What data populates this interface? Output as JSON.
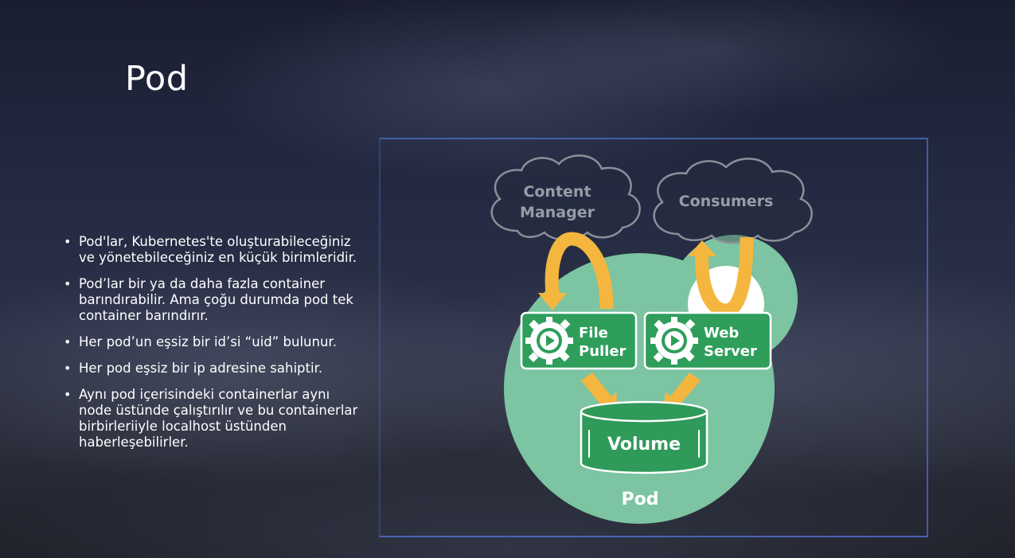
{
  "slide": {
    "title": "Pod",
    "bullets": [
      "Pod'lar, Kubernetes'te oluşturabileceğiniz ve yönetebileceğiniz en küçük birimleridir.",
      "Pod’lar bir ya da daha fazla container barındırabilir. Ama çoğu durumda pod tek container barındırır.",
      "Her pod’un eşsiz bir id’si “uid” bulunur.",
      "Her pod eşsiz bir ip adresine sahiptir.",
      "Aynı pod içerisindeki containerlar aynı node üstünde çalıştırılır ve bu containerlar birbirleriiyle localhost üstünden haberleşebilirler."
    ],
    "bullet_symbol": "•"
  },
  "diagram": {
    "cloud_left": {
      "line1": "Content",
      "line2": "Manager"
    },
    "cloud_right": {
      "label": "Consumers"
    },
    "container_left": {
      "line1": "File",
      "line2": "Puller",
      "icon": "gear-play-icon"
    },
    "container_right": {
      "line1": "Web",
      "line2": "Server",
      "icon": "gear-play-icon"
    },
    "volume": {
      "label": "Volume"
    },
    "pod": {
      "label": "Pod"
    },
    "colors": {
      "pod_fill": "#7cc4a2",
      "container_fill": "#2e9e5a",
      "volume_fill": "#2f9a59",
      "arrow": "#f4b63e",
      "cloud_stroke": "#8d8f98",
      "cloud_text": "#9a9ca6",
      "frame": "#506ec8"
    }
  }
}
